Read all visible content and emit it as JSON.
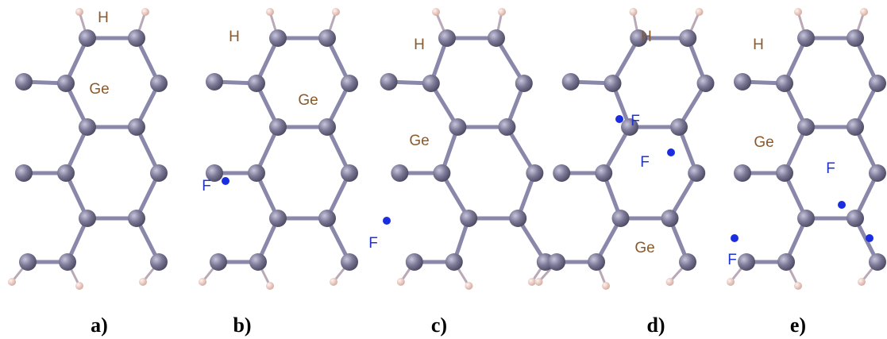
{
  "panels": [
    {
      "caption": "a)",
      "labels": [
        "H",
        "Ge"
      ]
    },
    {
      "caption": "b)",
      "labels": [
        "H",
        "Ge",
        "F"
      ]
    },
    {
      "caption": "c)",
      "labels": [
        "H",
        "Ge",
        "F"
      ]
    },
    {
      "caption": "d)",
      "labels": [
        "H",
        "F",
        "F",
        "Ge"
      ]
    },
    {
      "caption": "e)",
      "labels": [
        "H",
        "Ge",
        "F",
        "F"
      ]
    }
  ]
}
